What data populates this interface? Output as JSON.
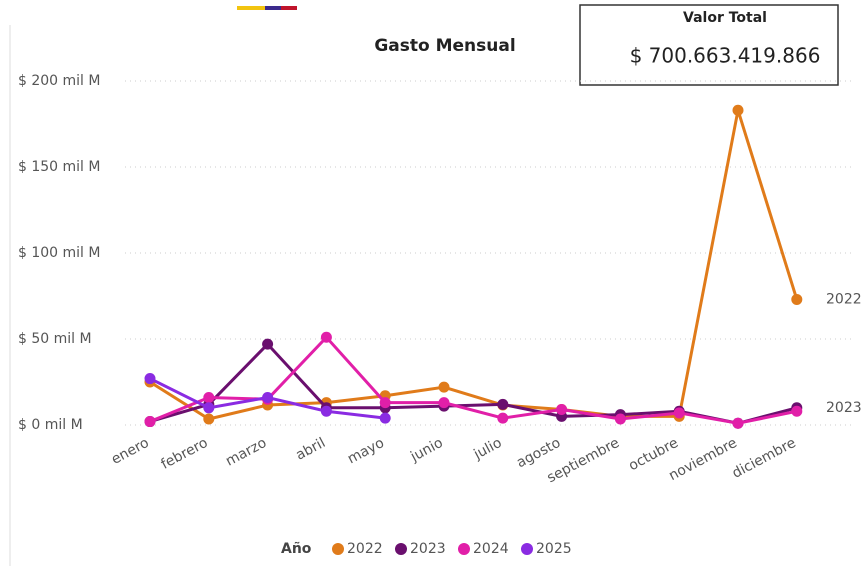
{
  "chart_data": {
    "type": "line",
    "title": "Gasto Mensual",
    "categories": [
      "enero",
      "febrero",
      "marzo",
      "abril",
      "mayo",
      "junio",
      "julio",
      "agosto",
      "septiembre",
      "octubre",
      "noviembre",
      "diciembre"
    ],
    "series": [
      {
        "name": "2022",
        "color": "#e07b1a",
        "values": [
          25,
          3.5,
          11.6,
          13,
          17,
          22,
          11.6,
          9,
          5,
          5,
          183,
          73
        ]
      },
      {
        "name": "2023",
        "color": "#6a0f6e",
        "values": [
          2,
          12,
          47,
          10,
          10,
          11,
          12,
          5,
          6,
          8,
          1,
          10
        ]
      },
      {
        "name": "2024",
        "color": "#e11fa8",
        "values": [
          2,
          16,
          15,
          51,
          13,
          13,
          4,
          9,
          3.5,
          7,
          1,
          8
        ]
      },
      {
        "name": "2025",
        "color": "#8a2be2",
        "values": [
          27,
          10,
          16,
          8,
          4,
          null,
          null,
          null,
          null,
          null,
          null,
          null
        ]
      }
    ],
    "ylim": [
      0,
      200
    ],
    "yticks": [
      {
        "value": 0,
        "label": "$ 0 mil M"
      },
      {
        "value": 50,
        "label": "$ 50 mil M"
      },
      {
        "value": 100,
        "label": "$ 100 mil M"
      },
      {
        "value": 150,
        "label": "$ 150 mil M"
      },
      {
        "value": 200,
        "label": "$ 200 mil M"
      }
    ],
    "grid": true,
    "legend_title": "Año",
    "legend_position": "bottom"
  },
  "card": {
    "title": "Valor Total",
    "value": "$ 700.663.419.866"
  }
}
